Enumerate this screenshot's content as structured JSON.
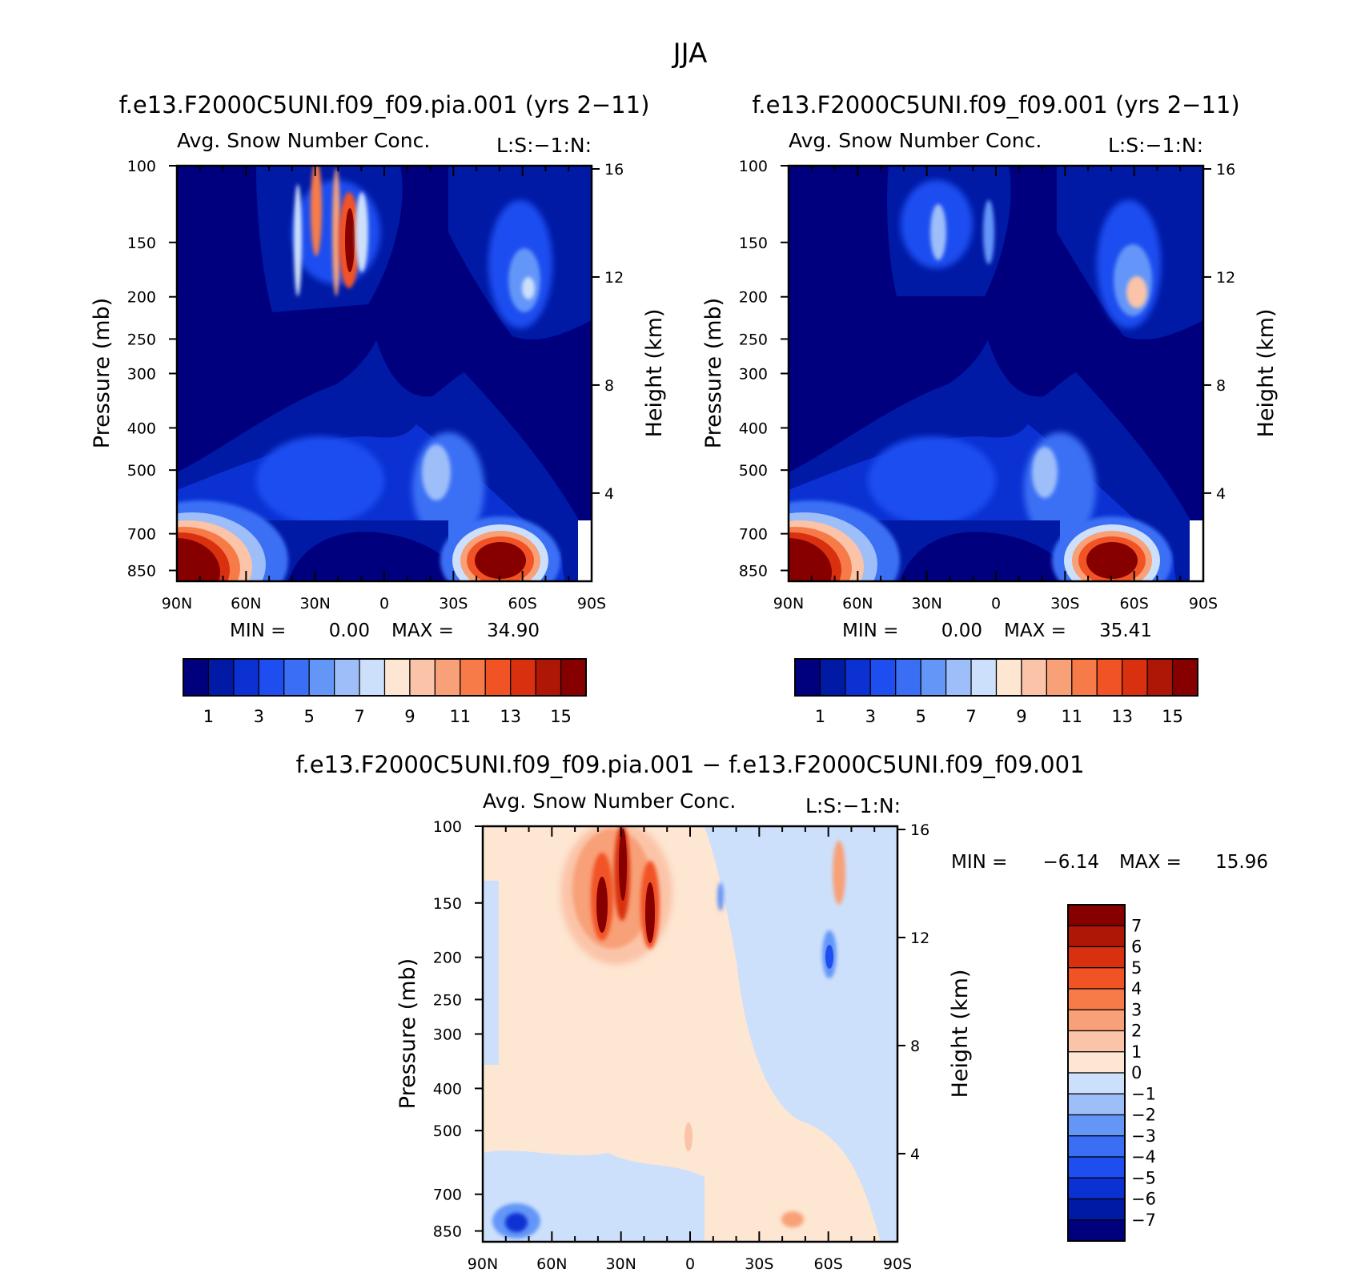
{
  "figure": {
    "title": "JJA"
  },
  "chart_data": [
    {
      "type": "heatmap",
      "id": "panel_pia",
      "title": "f.e13.F2000C5UNI.f09_f09.pia.001 (yrs 2−11)",
      "subtitle_left": "Avg. Snow Number Conc.",
      "subtitle_right": "L:S:−1:N:",
      "xlabel": "",
      "ylabel": "Pressure (mb)",
      "ylabel_right": "Height (km)",
      "x_ticks": [
        "90N",
        "60N",
        "30N",
        "0",
        "30S",
        "60S",
        "90S"
      ],
      "x_values": [
        90,
        60,
        30,
        0,
        -30,
        -60,
        -90
      ],
      "y_ticks": [
        "100",
        "150",
        "200",
        "250",
        "300",
        "400",
        "500",
        "700",
        "850"
      ],
      "y_values": [
        100,
        150,
        200,
        250,
        300,
        400,
        500,
        700,
        850
      ],
      "y_right_ticks": [
        "16",
        "12",
        "8",
        "4"
      ],
      "y_right_values": [
        16,
        12,
        8,
        4
      ],
      "ylim": [
        100,
        900
      ],
      "min_label": "MIN =",
      "min_value": "0.00",
      "max_label": "MAX =",
      "max_value": "34.90",
      "features": [
        {
          "name": "NH polar low-level maximum",
          "lat": 78,
          "p": 790,
          "value": 18
        },
        {
          "name": "SH midlatitude low-level maximum",
          "lat": -50,
          "p": 820,
          "value": 18
        },
        {
          "name": "subtropical upper maximum 1",
          "lat": 19,
          "p": 150,
          "value": 16
        },
        {
          "name": "subtropical upper maximum 2",
          "lat": 15,
          "p": 165,
          "value": 15
        },
        {
          "name": "upper band",
          "lat": 30,
          "p": 145,
          "value": 12
        },
        {
          "name": "SH upper secondary",
          "lat": -62,
          "p": 200,
          "value": 7
        },
        {
          "name": "SH mid-level",
          "lat": -18,
          "p": 480,
          "value": 7
        },
        {
          "name": "NH mid-level",
          "lat": 42,
          "p": 520,
          "value": 5
        }
      ],
      "colorbar": {
        "orientation": "horizontal",
        "levels": [
          1,
          2,
          3,
          4,
          5,
          6,
          7,
          8,
          9,
          10,
          11,
          12,
          13,
          14,
          15
        ],
        "labels": [
          "1",
          "3",
          "5",
          "7",
          "9",
          "11",
          "13",
          "15"
        ],
        "colors": [
          "#00007f",
          "#001aa6",
          "#0b31d3",
          "#1e4ef0",
          "#3a6ff5",
          "#6496f8",
          "#9dbef9",
          "#cde0fb",
          "#fde6d2",
          "#fbc4a8",
          "#f8a077",
          "#f77b49",
          "#f25325",
          "#d93010",
          "#ae1605",
          "#860000"
        ]
      }
    },
    {
      "type": "heatmap",
      "id": "panel_ctrl",
      "title": "f.e13.F2000C5UNI.f09_f09.001 (yrs 2−11)",
      "subtitle_left": "Avg. Snow Number Conc.",
      "subtitle_right": "L:S:−1:N:",
      "xlabel": "",
      "ylabel": "Pressure (mb)",
      "ylabel_right": "Height (km)",
      "x_ticks": [
        "90N",
        "60N",
        "30N",
        "0",
        "30S",
        "60S",
        "90S"
      ],
      "x_values": [
        90,
        60,
        30,
        0,
        -30,
        -60,
        -90
      ],
      "y_ticks": [
        "100",
        "150",
        "200",
        "250",
        "300",
        "400",
        "500",
        "700",
        "850"
      ],
      "y_values": [
        100,
        150,
        200,
        250,
        300,
        400,
        500,
        700,
        850
      ],
      "y_right_ticks": [
        "16",
        "12",
        "8",
        "4"
      ],
      "y_right_values": [
        16,
        12,
        8,
        4
      ],
      "ylim": [
        100,
        900
      ],
      "min_label": "MIN =",
      "min_value": "0.00",
      "max_label": "MAX =",
      "max_value": "35.41",
      "features": [
        {
          "name": "NH polar low-level maximum",
          "lat": 78,
          "p": 790,
          "value": 18
        },
        {
          "name": "SH midlatitude low-level maximum",
          "lat": -48,
          "p": 810,
          "value": 17
        },
        {
          "name": "SH upper maximum",
          "lat": -60,
          "p": 200,
          "value": 10
        },
        {
          "name": "upper band",
          "lat": 35,
          "p": 150,
          "value": 8
        },
        {
          "name": "upper band 2",
          "lat": 12,
          "p": 150,
          "value": 7
        },
        {
          "name": "SH mid-level",
          "lat": -20,
          "p": 490,
          "value": 8
        },
        {
          "name": "NH mid-level",
          "lat": 42,
          "p": 520,
          "value": 5
        }
      ],
      "colorbar": {
        "orientation": "horizontal",
        "levels": [
          1,
          2,
          3,
          4,
          5,
          6,
          7,
          8,
          9,
          10,
          11,
          12,
          13,
          14,
          15
        ],
        "labels": [
          "1",
          "3",
          "5",
          "7",
          "9",
          "11",
          "13",
          "15"
        ],
        "colors": [
          "#00007f",
          "#001aa6",
          "#0b31d3",
          "#1e4ef0",
          "#3a6ff5",
          "#6496f8",
          "#9dbef9",
          "#cde0fb",
          "#fde6d2",
          "#fbc4a8",
          "#f8a077",
          "#f77b49",
          "#f25325",
          "#d93010",
          "#ae1605",
          "#860000"
        ]
      }
    },
    {
      "type": "heatmap",
      "id": "panel_diff",
      "title": "f.e13.F2000C5UNI.f09_f09.pia.001 − f.e13.F2000C5UNI.f09_f09.001",
      "subtitle_left": "Avg. Snow Number Conc.",
      "subtitle_right": "L:S:−1:N:",
      "xlabel": "",
      "ylabel": "Pressure (mb)",
      "ylabel_right": "Height (km)",
      "x_ticks": [
        "90N",
        "60N",
        "30N",
        "0",
        "30S",
        "60S",
        "90S"
      ],
      "x_values": [
        90,
        60,
        30,
        0,
        -30,
        -60,
        -90
      ],
      "y_ticks": [
        "100",
        "150",
        "200",
        "250",
        "300",
        "400",
        "500",
        "700",
        "850"
      ],
      "y_values": [
        100,
        150,
        200,
        250,
        300,
        400,
        500,
        700,
        850
      ],
      "y_right_ticks": [
        "16",
        "12",
        "8",
        "4"
      ],
      "y_right_values": [
        16,
        12,
        8,
        4
      ],
      "ylim": [
        100,
        900
      ],
      "min_label": "MIN =",
      "min_value": "−6.14",
      "max_label": "MAX =",
      "max_value": "15.96",
      "features": [
        {
          "name": "upper positive 1",
          "lat": 30,
          "p": 150,
          "value": 7
        },
        {
          "name": "upper positive 2",
          "lat": 18,
          "p": 160,
          "value": 7
        },
        {
          "name": "upper positive 3",
          "lat": 40,
          "p": 150,
          "value": 6
        },
        {
          "name": "NH low-level negative",
          "lat": 72,
          "p": 850,
          "value": -6
        },
        {
          "name": "SH upper negative",
          "lat": -60,
          "p": 200,
          "value": -5
        },
        {
          "name": "SH upper positive",
          "lat": -64,
          "p": 120,
          "value": 3
        },
        {
          "name": "SH low-level positive",
          "lat": -45,
          "p": 840,
          "value": 2
        }
      ],
      "colorbar": {
        "orientation": "vertical",
        "levels": [
          -7,
          -6,
          -5,
          -4,
          -3,
          -2,
          -1,
          0,
          1,
          2,
          3,
          4,
          5,
          6,
          7
        ],
        "labels": [
          "7",
          "6",
          "5",
          "4",
          "3",
          "2",
          "1",
          "0",
          "−1",
          "−2",
          "−3",
          "−4",
          "−5",
          "−6",
          "−7"
        ],
        "colors": [
          "#00007f",
          "#001aa6",
          "#0b31d3",
          "#1e4ef0",
          "#3a6ff5",
          "#6496f8",
          "#9dbef9",
          "#cde0fb",
          "#fde6d2",
          "#fbc4a8",
          "#f8a077",
          "#f77b49",
          "#f25325",
          "#d93010",
          "#ae1605",
          "#860000"
        ]
      }
    }
  ]
}
